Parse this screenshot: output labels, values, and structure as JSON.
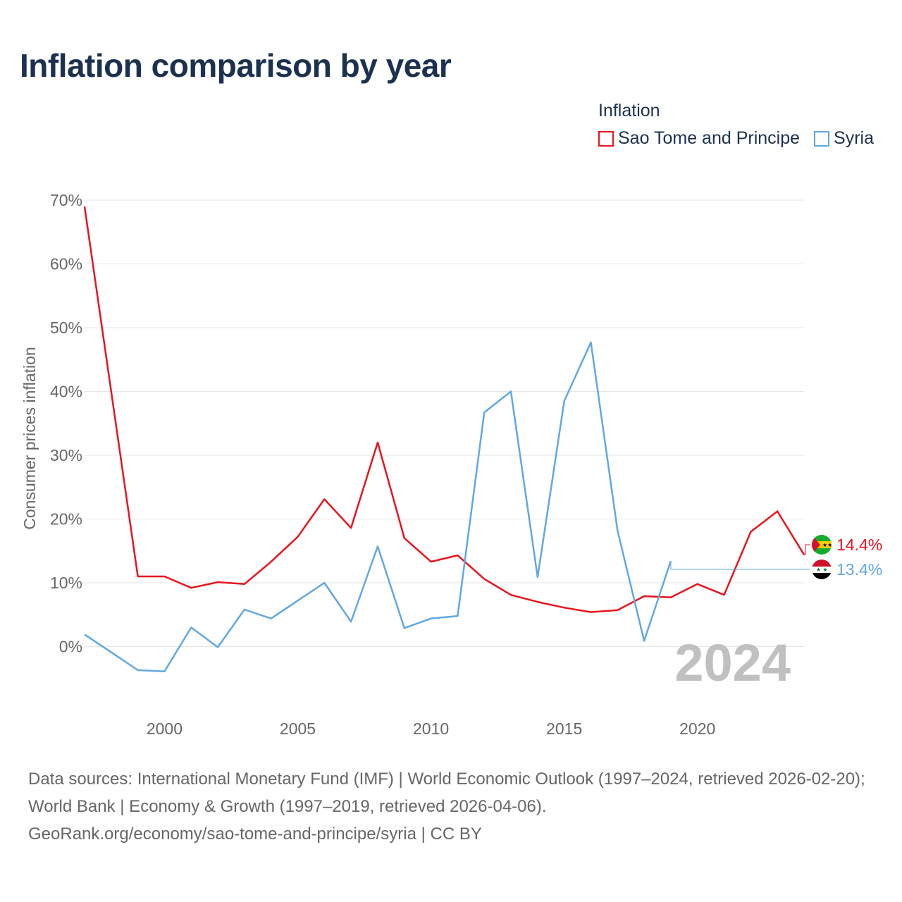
{
  "title": "Inflation comparison by year",
  "legend": {
    "title": "Inflation",
    "items": [
      {
        "label": "Sao Tome and Principe",
        "color": "#e8141d"
      },
      {
        "label": "Syria",
        "color": "#61a8e3"
      }
    ]
  },
  "chart_data": {
    "type": "line",
    "ylabel": "Consumer prices inflation",
    "xlabel": "",
    "ylim": [
      -10,
      70
    ],
    "xlim": [
      1997,
      2024
    ],
    "y_ticks": [
      0,
      10,
      20,
      30,
      40,
      50,
      60,
      70
    ],
    "y_tick_labels": [
      "0%",
      "10%",
      "20%",
      "30%",
      "40%",
      "50%",
      "60%",
      "70%"
    ],
    "x_ticks": [
      2000,
      2005,
      2010,
      2015,
      2020
    ],
    "x_tick_labels": [
      "2000",
      "2005",
      "2010",
      "2015",
      "2020"
    ],
    "grid": true,
    "year_watermark": "2024",
    "series": [
      {
        "name": "Sao Tome and Principe",
        "color": "#e8141d",
        "x": [
          1997,
          1998,
          1999,
          2000,
          2001,
          2002,
          2003,
          2004,
          2005,
          2006,
          2007,
          2008,
          2009,
          2010,
          2011,
          2012,
          2013,
          2014,
          2015,
          2016,
          2017,
          2018,
          2019,
          2020,
          2021,
          2022,
          2023,
          2024
        ],
        "values": [
          69.0,
          40.0,
          11.0,
          11.0,
          9.2,
          10.1,
          9.8,
          13.3,
          17.2,
          23.1,
          18.6,
          32.0,
          17.0,
          13.3,
          14.3,
          10.6,
          8.1,
          7.0,
          6.1,
          5.4,
          5.7,
          7.9,
          7.7,
          9.8,
          8.1,
          18.0,
          21.2,
          14.4
        ],
        "end_label": "14.4%"
      },
      {
        "name": "Syria",
        "color": "#61a8e3",
        "x": [
          1997,
          1998,
          1999,
          2000,
          2001,
          2002,
          2003,
          2004,
          2005,
          2006,
          2007,
          2008,
          2009,
          2010,
          2011,
          2012,
          2013,
          2014,
          2015,
          2016,
          2017,
          2018,
          2019
        ],
        "values": [
          1.9,
          -0.9,
          -3.7,
          -3.9,
          3.0,
          -0.1,
          5.8,
          4.4,
          7.2,
          10.0,
          3.9,
          15.7,
          2.9,
          4.4,
          4.8,
          36.7,
          40.0,
          10.9,
          38.5,
          47.7,
          18.2,
          0.9,
          13.4
        ],
        "end_label": "13.4%"
      }
    ]
  },
  "source_lines": [
    "Data sources: International Monetary Fund (IMF) | World Economic Outlook (1997–2024, retrieved 2026-02-20); World Bank | Economy & Growth (1997–2019, retrieved 2026-04-06).",
    "GeoRank.org/economy/sao-tome-and-principe/syria | CC BY"
  ]
}
